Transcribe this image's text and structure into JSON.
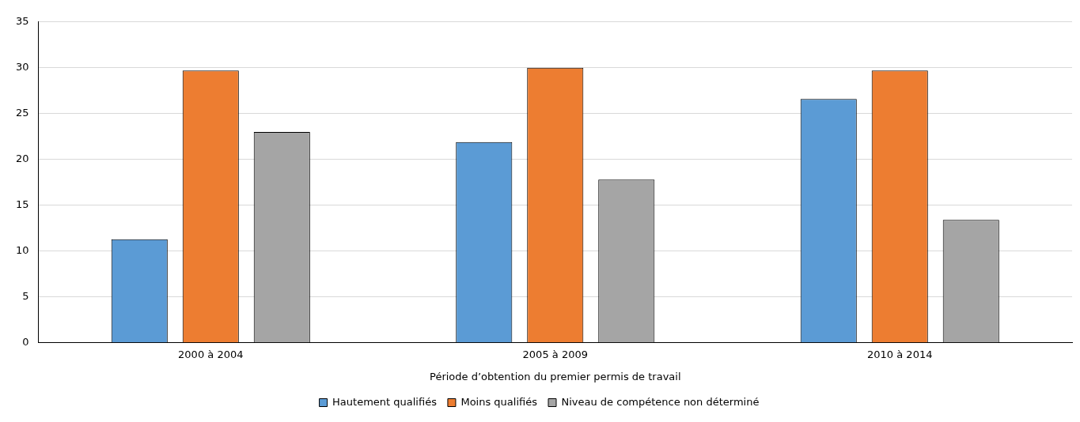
{
  "chart_data": {
    "type": "bar",
    "xlabel": "Période d’obtention du premier permis de travail",
    "categories": [
      "2000 à 2004",
      "2005 à 2009",
      "2010 à 2014"
    ],
    "series": [
      {
        "name": "Hautement qualifiés",
        "color": "#5b9bd5",
        "values": [
          11.3,
          21.9,
          26.6
        ]
      },
      {
        "name": "Moins qualifiés",
        "color": "#ed7d31",
        "values": [
          29.7,
          30.0,
          29.7
        ]
      },
      {
        "name": "Niveau de compétence non déterminé",
        "color": "#a5a5a5",
        "values": [
          23.0,
          17.8,
          13.4
        ]
      }
    ],
    "ylim": [
      0,
      35
    ],
    "yticks": [
      0,
      5,
      10,
      15,
      20,
      25,
      30,
      35
    ],
    "grid": "y",
    "legend": "bottom"
  }
}
